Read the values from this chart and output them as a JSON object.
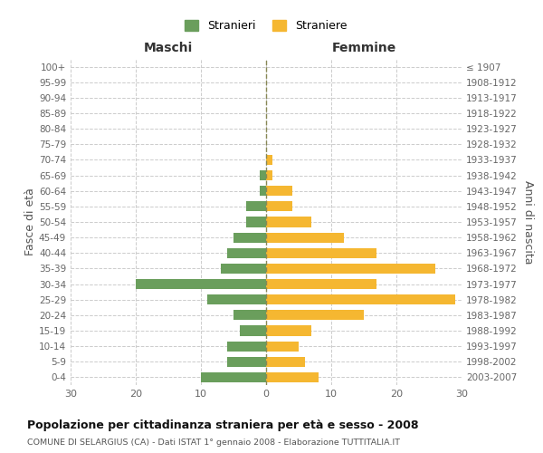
{
  "age_groups": [
    "0-4",
    "5-9",
    "10-14",
    "15-19",
    "20-24",
    "25-29",
    "30-34",
    "35-39",
    "40-44",
    "45-49",
    "50-54",
    "55-59",
    "60-64",
    "65-69",
    "70-74",
    "75-79",
    "80-84",
    "85-89",
    "90-94",
    "95-99",
    "100+"
  ],
  "birth_years": [
    "2003-2007",
    "1998-2002",
    "1993-1997",
    "1988-1992",
    "1983-1987",
    "1978-1982",
    "1973-1977",
    "1968-1972",
    "1963-1967",
    "1958-1962",
    "1953-1957",
    "1948-1952",
    "1943-1947",
    "1938-1942",
    "1933-1937",
    "1928-1932",
    "1923-1927",
    "1918-1922",
    "1913-1917",
    "1908-1912",
    "≤ 1907"
  ],
  "males": [
    10,
    6,
    6,
    4,
    5,
    9,
    20,
    7,
    6,
    5,
    3,
    3,
    1,
    1,
    0,
    0,
    0,
    0,
    0,
    0,
    0
  ],
  "females": [
    8,
    6,
    5,
    7,
    15,
    29,
    17,
    26,
    17,
    12,
    7,
    4,
    4,
    1,
    1,
    0,
    0,
    0,
    0,
    0,
    0
  ],
  "male_color": "#6a9e5c",
  "female_color": "#f5b731",
  "grid_color": "#cccccc",
  "center_line_color": "#888855",
  "title": "Popolazione per cittadinanza straniera per età e sesso - 2008",
  "subtitle": "COMUNE DI SELARGIUS (CA) - Dati ISTAT 1° gennaio 2008 - Elaborazione TUTTITALIA.IT",
  "ylabel_left": "Fasce di età",
  "ylabel_right": "Anni di nascita",
  "xlabel_left": "Maschi",
  "xlabel_right": "Femmine",
  "legend_male": "Stranieri",
  "legend_female": "Straniere",
  "xlim": 30,
  "background_color": "#ffffff"
}
